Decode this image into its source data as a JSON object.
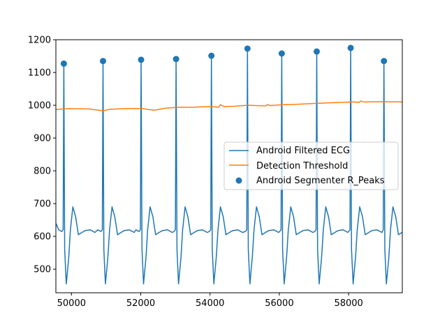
{
  "chart_data": {
    "type": "line",
    "title": "",
    "xlabel": "",
    "ylabel": "",
    "xlim": [
      49550,
      59550
    ],
    "ylim": [
      428,
      1200
    ],
    "xticks": [
      50000,
      52000,
      54000,
      56000,
      58000
    ],
    "xtick_labels": [
      "50000",
      "52000",
      "54000",
      "56000",
      "58000"
    ],
    "yticks": [
      500,
      600,
      700,
      800,
      900,
      1000,
      1100,
      1200
    ],
    "ytick_labels": [
      "500",
      "600",
      "700",
      "800",
      "900",
      "1000",
      "1100",
      "1200"
    ],
    "grid": false,
    "legend_position": "center-right",
    "colors": {
      "ecg": "#1f77b4",
      "threshold": "#ff7f0e",
      "peaks": "#1f77b4"
    },
    "series": [
      {
        "name": "Android Filtered ECG",
        "kind": "line",
        "beat_template": [
          [
            -300,
            615
          ],
          [
            -150,
            620
          ],
          [
            -60,
            615
          ],
          [
            -20,
            620
          ],
          [
            0,
            1127
          ],
          [
            25,
            560
          ],
          [
            70,
            455
          ],
          [
            140,
            535
          ],
          [
            190,
            620
          ],
          [
            260,
            690
          ],
          [
            340,
            660
          ],
          [
            420,
            605
          ],
          [
            520,
            612
          ],
          [
            620,
            618
          ],
          [
            760,
            620
          ],
          [
            900,
            612
          ]
        ],
        "r_peak_x": [
          49780,
          50910,
          52010,
          53020,
          54040,
          55080,
          56070,
          57080,
          58060,
          59020
        ],
        "r_peak_y": [
          1127,
          1135,
          1139,
          1141,
          1151,
          1173,
          1158,
          1164,
          1175,
          1135
        ],
        "start_point": [
          49550,
          640
        ],
        "end_point": [
          59550,
          616
        ]
      },
      {
        "name": "Detection Threshold",
        "kind": "line",
        "x": [
          49550,
          49900,
          50500,
          50920,
          51100,
          51600,
          52050,
          52250,
          52400,
          52700,
          53100,
          53500,
          54000,
          54250,
          54300,
          54400,
          54700,
          55100,
          55600,
          55650,
          55750,
          56100,
          56500,
          57100,
          57600,
          58100,
          58300,
          58350,
          58450,
          59000,
          59550
        ],
        "y": [
          987,
          990,
          989,
          983,
          988,
          990,
          990,
          987,
          985,
          991,
          994,
          994,
          996,
          994,
          1002,
          996,
          997,
          1000,
          998,
          1002,
          999,
          1002,
          1003,
          1006,
          1008,
          1010,
          1009,
          1013,
          1010,
          1011,
          1010
        ]
      },
      {
        "name": "Android Segmenter R_Peaks",
        "kind": "scatter",
        "x": [
          49780,
          50910,
          52010,
          53020,
          54040,
          55080,
          56070,
          57080,
          58060,
          59020
        ],
        "y": [
          1127,
          1135,
          1139,
          1141,
          1151,
          1173,
          1158,
          1164,
          1175,
          1135
        ]
      }
    ]
  }
}
